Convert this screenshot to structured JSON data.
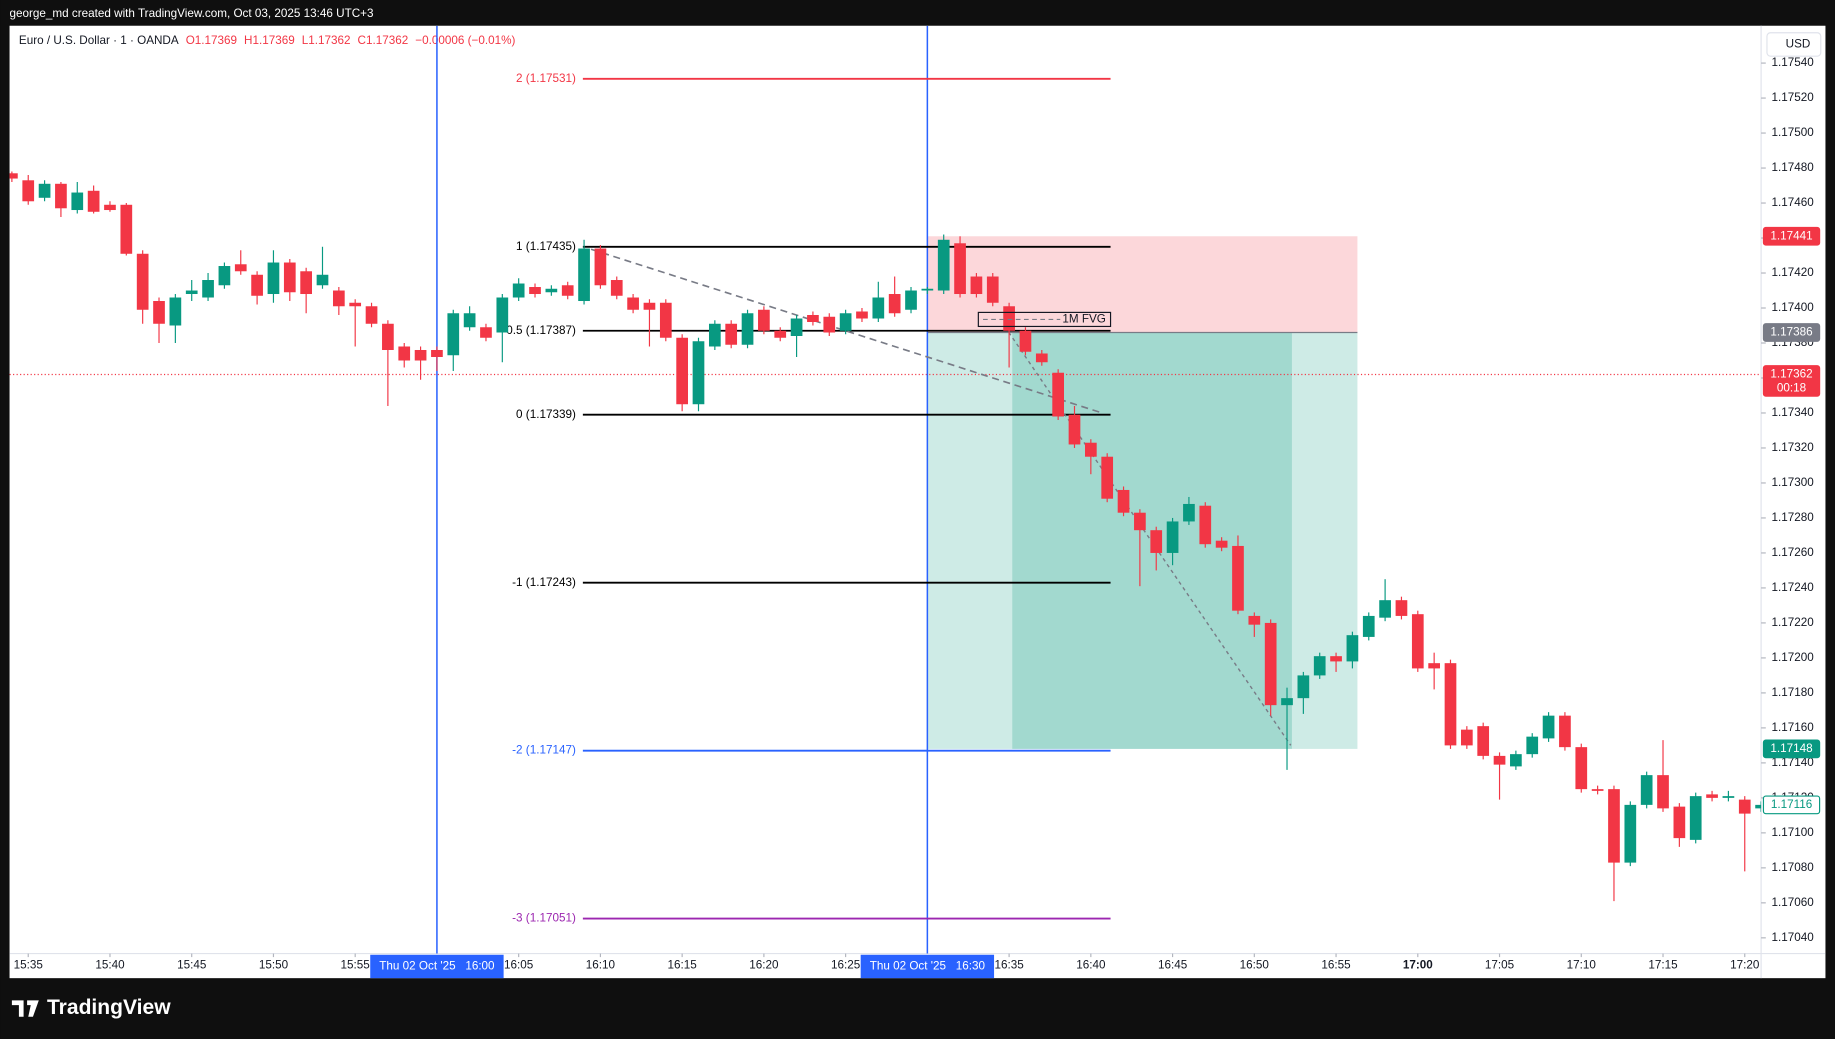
{
  "header": {
    "credit": "george_md created with TradingView.com, Oct 03, 2025 13:46 UTC+3",
    "brand": "TradingView"
  },
  "chart_data": {
    "type": "candlestick",
    "legend": {
      "symbol": "Euro / U.S. Dollar · 1 · OANDA",
      "open": "O1.17369",
      "high": "H1.17369",
      "low": "L1.17362",
      "close": "C1.17362",
      "change": "−0.00006 (−0.01%)"
    },
    "currency": "USD",
    "up_color": "#089981",
    "down_color": "#f23645",
    "grid": false,
    "xlim": [
      "15:34",
      "17:21"
    ],
    "ylim": [
      1.17031,
      1.1756
    ],
    "xticks": [
      "15:35",
      "15:40",
      "15:45",
      "15:50",
      "15:55",
      "16:05",
      "16:10",
      "16:15",
      "16:20",
      "16:25",
      "16:35",
      "16:40",
      "16:45",
      "16:50",
      "16:55",
      "17:00",
      "17:05",
      "17:10",
      "17:15",
      "17:20"
    ],
    "yticks": [
      {
        "value": 1.1754,
        "label": "1.17540"
      },
      {
        "value": 1.1752,
        "label": "1.17520"
      },
      {
        "value": 1.175,
        "label": "1.17500"
      },
      {
        "value": 1.1748,
        "label": "1.17480"
      },
      {
        "value": 1.1746,
        "label": "1.17460"
      },
      {
        "value": 1.1744,
        "label": "1.17440"
      },
      {
        "value": 1.1742,
        "label": "1.17420"
      },
      {
        "value": 1.174,
        "label": "1.17400"
      },
      {
        "value": 1.1738,
        "label": "1.17380"
      },
      {
        "value": 1.1736,
        "label": "1.17360"
      },
      {
        "value": 1.1734,
        "label": "1.17340"
      },
      {
        "value": 1.1732,
        "label": "1.17320"
      },
      {
        "value": 1.173,
        "label": "1.17300"
      },
      {
        "value": 1.1728,
        "label": "1.17280"
      },
      {
        "value": 1.1726,
        "label": "1.17260"
      },
      {
        "value": 1.1724,
        "label": "1.17240"
      },
      {
        "value": 1.1722,
        "label": "1.17220"
      },
      {
        "value": 1.172,
        "label": "1.17200"
      },
      {
        "value": 1.1718,
        "label": "1.17180"
      },
      {
        "value": 1.1716,
        "label": "1.17160"
      },
      {
        "value": 1.1714,
        "label": "1.17140"
      },
      {
        "value": 1.1712,
        "label": "1.17120"
      },
      {
        "value": 1.171,
        "label": "1.17100"
      },
      {
        "value": 1.1708,
        "label": "1.17080"
      },
      {
        "value": 1.1706,
        "label": "1.17060"
      },
      {
        "value": 1.1704,
        "label": "1.17040"
      }
    ],
    "x": [
      "15:34",
      "15:35",
      "15:36",
      "15:37",
      "15:38",
      "15:39",
      "15:40",
      "15:41",
      "15:42",
      "15:43",
      "15:44",
      "15:45",
      "15:46",
      "15:47",
      "15:48",
      "15:49",
      "15:50",
      "15:51",
      "15:52",
      "15:53",
      "15:54",
      "15:55",
      "15:56",
      "15:57",
      "15:58",
      "15:59",
      "16:00",
      "16:01",
      "16:02",
      "16:03",
      "16:04",
      "16:05",
      "16:06",
      "16:07",
      "16:08",
      "16:09",
      "16:10",
      "16:11",
      "16:12",
      "16:13",
      "16:14",
      "16:15",
      "16:16",
      "16:17",
      "16:18",
      "16:19",
      "16:20",
      "16:21",
      "16:22",
      "16:23",
      "16:24",
      "16:25",
      "16:26",
      "16:27",
      "16:28",
      "16:29",
      "16:30",
      "16:31",
      "16:32",
      "16:33",
      "16:34",
      "16:35",
      "16:36",
      "16:37",
      "16:38",
      "16:39",
      "16:40",
      "16:41",
      "16:42",
      "16:43",
      "16:44",
      "16:45",
      "16:46",
      "16:47",
      "16:48",
      "16:49",
      "16:50",
      "16:51",
      "16:52",
      "16:53",
      "16:54",
      "16:55",
      "16:56",
      "16:57",
      "16:58",
      "16:59",
      "17:00",
      "17:01",
      "17:02",
      "17:03",
      "17:04",
      "17:05",
      "17:06",
      "17:07",
      "17:08",
      "17:09",
      "17:10",
      "17:11",
      "17:12",
      "17:13",
      "17:14",
      "17:15",
      "17:16",
      "17:17",
      "17:18",
      "17:19",
      "17:20",
      "17:21"
    ],
    "open": [
      1.17477,
      1.17473,
      1.17463,
      1.17471,
      1.17456,
      1.17467,
      1.17459,
      1.17459,
      1.17431,
      1.17404,
      1.1739,
      1.17408,
      1.17406,
      1.17413,
      1.17425,
      1.17419,
      1.17408,
      1.17426,
      1.17421,
      1.17413,
      1.1741,
      1.17403,
      1.17401,
      1.17391,
      1.17378,
      1.17376,
      1.17376,
      1.17373,
      1.17389,
      1.17389,
      1.17386,
      1.17406,
      1.17412,
      1.17409,
      1.17413,
      1.17404,
      1.17434,
      1.17416,
      1.17406,
      1.17403,
      1.17403,
      1.17383,
      1.17345,
      1.17378,
      1.17391,
      1.17379,
      1.17399,
      1.17387,
      1.17384,
      1.17396,
      1.17395,
      1.17387,
      1.17398,
      1.17394,
      1.17408,
      1.17399,
      1.1741,
      1.1741,
      1.17437,
      1.17418,
      1.17418,
      1.17401,
      1.17387,
      1.17374,
      1.17363,
      1.17339,
      1.17323,
      1.17315,
      1.17296,
      1.17283,
      1.17273,
      1.1726,
      1.17278,
      1.17287,
      1.17267,
      1.17264,
      1.17224,
      1.1722,
      1.17173,
      1.17177,
      1.1719,
      1.17201,
      1.17198,
      1.17212,
      1.17223,
      1.17233,
      1.17225,
      1.17197,
      1.17197,
      1.17159,
      1.17161,
      1.17144,
      1.17138,
      1.17145,
      1.17154,
      1.17167,
      1.17149,
      1.17125,
      1.17125,
      1.17083,
      1.17116,
      1.17133,
      1.17115,
      1.17096,
      1.17122,
      1.1712,
      1.17119,
      1.17114
    ],
    "high": [
      1.17478,
      1.17476,
      1.17473,
      1.17472,
      1.17472,
      1.1747,
      1.17461,
      1.1746,
      1.17433,
      1.17406,
      1.17408,
      1.17416,
      1.1742,
      1.17426,
      1.17433,
      1.17421,
      1.17433,
      1.17428,
      1.17423,
      1.17435,
      1.17412,
      1.17405,
      1.17403,
      1.17393,
      1.1738,
      1.17378,
      1.17378,
      1.17399,
      1.17401,
      1.17391,
      1.17408,
      1.17417,
      1.17414,
      1.17413,
      1.17415,
      1.17439,
      1.17436,
      1.17418,
      1.17408,
      1.17405,
      1.17405,
      1.17385,
      1.17383,
      1.17393,
      1.17393,
      1.17399,
      1.17401,
      1.17389,
      1.17396,
      1.17398,
      1.17397,
      1.17399,
      1.174,
      1.17415,
      1.17418,
      1.17412,
      1.17412,
      1.17442,
      1.17441,
      1.1742,
      1.1742,
      1.17403,
      1.17389,
      1.17376,
      1.17365,
      1.17344,
      1.17325,
      1.17317,
      1.17298,
      1.17285,
      1.17275,
      1.1728,
      1.17292,
      1.17289,
      1.17269,
      1.1727,
      1.17226,
      1.17222,
      1.17183,
      1.17192,
      1.17203,
      1.17203,
      1.17215,
      1.17226,
      1.17245,
      1.17235,
      1.17227,
      1.17203,
      1.17199,
      1.17161,
      1.17163,
      1.17146,
      1.17147,
      1.17157,
      1.17169,
      1.17169,
      1.17151,
      1.17127,
      1.17127,
      1.17118,
      1.17135,
      1.17153,
      1.17117,
      1.17123,
      1.17124,
      1.17124,
      1.17121,
      1.17118
    ],
    "low": [
      1.17472,
      1.17459,
      1.17461,
      1.17452,
      1.17454,
      1.17454,
      1.17455,
      1.1743,
      1.17391,
      1.1738,
      1.1738,
      1.17404,
      1.17404,
      1.17411,
      1.17419,
      1.17402,
      1.17403,
      1.17404,
      1.17397,
      1.17411,
      1.17396,
      1.17378,
      1.17389,
      1.17344,
      1.17366,
      1.17359,
      1.17364,
      1.17364,
      1.17387,
      1.17381,
      1.17369,
      1.17404,
      1.17406,
      1.17407,
      1.17405,
      1.17402,
      1.17411,
      1.17405,
      1.17397,
      1.17378,
      1.17381,
      1.17341,
      1.17341,
      1.17376,
      1.17377,
      1.17377,
      1.17385,
      1.17381,
      1.17372,
      1.1739,
      1.17384,
      1.17385,
      1.17392,
      1.17392,
      1.17395,
      1.17397,
      1.17408,
      1.17408,
      1.17406,
      1.17406,
      1.17401,
      1.17366,
      1.17373,
      1.17367,
      1.17336,
      1.1732,
      1.17305,
      1.17289,
      1.17281,
      1.17241,
      1.1725,
      1.17253,
      1.17276,
      1.17263,
      1.17261,
      1.17225,
      1.17212,
      1.17167,
      1.17136,
      1.17168,
      1.17188,
      1.17192,
      1.17194,
      1.1721,
      1.17221,
      1.17222,
      1.17192,
      1.17182,
      1.17148,
      1.17148,
      1.17142,
      1.17119,
      1.17136,
      1.17143,
      1.17152,
      1.17147,
      1.17123,
      1.17122,
      1.17061,
      1.17081,
      1.17114,
      1.17112,
      1.17092,
      1.17094,
      1.17118,
      1.17118,
      1.17078,
      1.17112
    ],
    "close": [
      1.17474,
      1.17461,
      1.17471,
      1.17457,
      1.17466,
      1.17455,
      1.17456,
      1.17431,
      1.17399,
      1.17391,
      1.17406,
      1.1741,
      1.17416,
      1.17424,
      1.17421,
      1.17407,
      1.17426,
      1.17409,
      1.17408,
      1.17419,
      1.17401,
      1.17401,
      1.17391,
      1.17376,
      1.1737,
      1.1737,
      1.17372,
      1.17397,
      1.17397,
      1.17383,
      1.17406,
      1.17414,
      1.17408,
      1.17411,
      1.17407,
      1.17434,
      1.17413,
      1.17407,
      1.17399,
      1.17399,
      1.17383,
      1.17345,
      1.17381,
      1.17391,
      1.17379,
      1.17397,
      1.17387,
      1.17383,
      1.17394,
      1.17392,
      1.17386,
      1.17397,
      1.17394,
      1.17406,
      1.17397,
      1.1741,
      1.17411,
      1.17439,
      1.17408,
      1.17408,
      1.17403,
      1.17387,
      1.17375,
      1.17369,
      1.17338,
      1.17322,
      1.17315,
      1.17291,
      1.17283,
      1.17273,
      1.1726,
      1.17278,
      1.17288,
      1.17265,
      1.17263,
      1.17227,
      1.17219,
      1.17173,
      1.17177,
      1.1719,
      1.17201,
      1.17198,
      1.17213,
      1.17224,
      1.17233,
      1.17224,
      1.17194,
      1.17194,
      1.1715,
      1.1715,
      1.17144,
      1.17139,
      1.17145,
      1.17155,
      1.17167,
      1.17149,
      1.17125,
      1.17124,
      1.17083,
      1.17116,
      1.17133,
      1.17114,
      1.17097,
      1.17121,
      1.1712,
      1.17121,
      1.17111,
      1.17116
    ],
    "vlines": [
      {
        "x": "16:00",
        "label": "Thu 02 Oct '25   16:00"
      },
      {
        "x": "16:30",
        "label": "Thu 02 Oct '25   16:30"
      }
    ],
    "fib_levels": [
      {
        "price": 1.17531,
        "label": "2 (1.17531)",
        "color": "#f23645"
      },
      {
        "price": 1.17435,
        "label": "1 (1.17435)",
        "color": "#000000"
      },
      {
        "price": 1.17387,
        "label": "0.5 (1.17387)",
        "color": "#000000"
      },
      {
        "price": 1.17339,
        "label": "0 (1.17339)",
        "color": "#000000"
      },
      {
        "price": 1.17243,
        "label": "-1 (1.17243)",
        "color": "#000000"
      },
      {
        "price": 1.17147,
        "label": "-2 (1.17147)",
        "color": "#2962ff"
      },
      {
        "price": 1.17051,
        "label": "-3 (1.17051)",
        "color": "#9c27b0"
      }
    ],
    "position": {
      "stop": 1.17441,
      "entry": 1.17386,
      "target": 1.17148
    },
    "last_price": 1.17362,
    "countdown": "00:18",
    "fvg_label": "1M FVG"
  }
}
